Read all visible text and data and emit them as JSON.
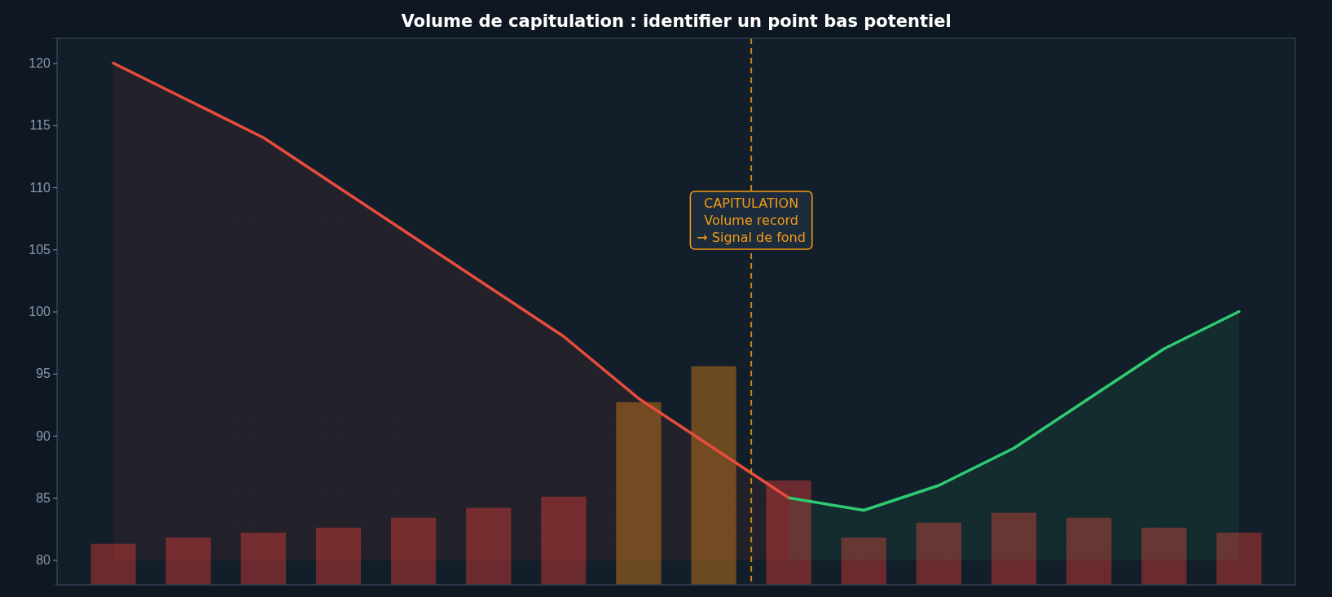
{
  "chart_data": {
    "type": "bar",
    "title": "Volume de capitulation : identifier un point bas potentiel",
    "categories": [
      null,
      null,
      null,
      null,
      null,
      null,
      null,
      null,
      null,
      null,
      null,
      null,
      null,
      null,
      null,
      null
    ],
    "ylim": [
      78,
      122
    ],
    "yticks": [
      80,
      85,
      90,
      95,
      100,
      105,
      110,
      115,
      120
    ],
    "tick_labels": "y",
    "grid": false,
    "series": [
      {
        "base": [
          78,
          78,
          78,
          78,
          78,
          78,
          78,
          78,
          78,
          78,
          78,
          78,
          78,
          78,
          78,
          78
        ],
        "values": [
          3.3,
          3.8,
          4.2,
          4.6,
          5.4,
          6.2,
          7.1,
          14.7,
          17.6,
          8.4,
          3.8,
          5.0,
          5.8,
          5.4,
          4.6,
          4.2
        ],
        "colors": [
          "#6b2a2e",
          "#6b2a2e",
          "#6b2a2e",
          "#6b2a2e",
          "#6b2a2e",
          "#6b2a2e",
          "#6b2a2e",
          "#6b4a20",
          "#6b4a20",
          "#6b2a2e",
          "#6b2a2e",
          "#6b2a2e",
          "#6b2a2e",
          "#6b2a2e",
          "#6b2a2e",
          "#6b2a2e"
        ]
      },
      {
        "type": "area",
        "colors": [
          "#e74c3c",
          "#e74c3c",
          "#e74c3c",
          "#e74c3c",
          "#e74c3c",
          "#e74c3c",
          "#e74c3c",
          "#e74c3c",
          "#e74c3c",
          "#e74c3c",
          "#2ecc71",
          "#2ecc71",
          "#2ecc71",
          "#2ecc71",
          "#2ecc71",
          "#2ecc71"
        ],
        "values": [
          120,
          117,
          114,
          110,
          106,
          102,
          98,
          93,
          89,
          85,
          84,
          86,
          89,
          93,
          97,
          100
        ]
      }
    ],
    "annotations": [
      "CAPITULATION\nVolume record\n→ Signal de fond"
    ]
  }
}
